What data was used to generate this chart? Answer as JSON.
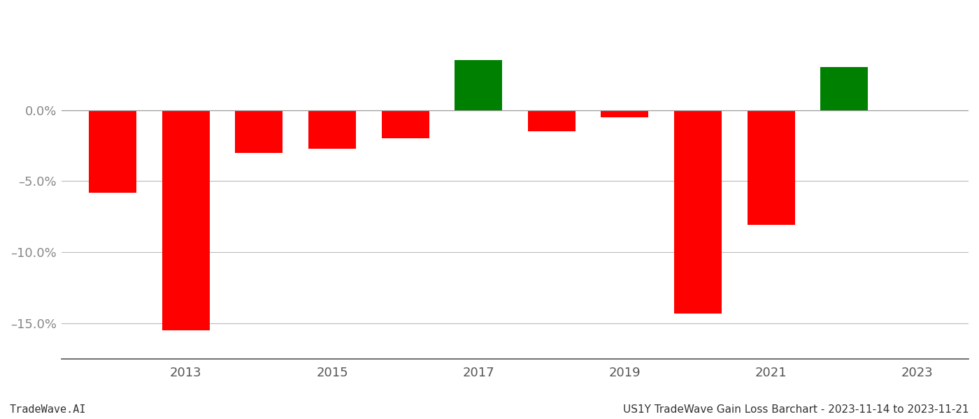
{
  "years": [
    2012,
    2013,
    2014,
    2015,
    2016,
    2017,
    2018,
    2019,
    2020,
    2021,
    2022
  ],
  "values": [
    -0.058,
    -0.155,
    -0.03,
    -0.027,
    -0.02,
    0.035,
    -0.015,
    -0.005,
    -0.143,
    -0.081,
    0.03
  ],
  "positive_color": "#008000",
  "negative_color": "#ff0000",
  "background_color": "#ffffff",
  "grid_color": "#bbbbbb",
  "ylabel_color": "#888888",
  "xlabel_color": "#555555",
  "ylim": [
    -0.175,
    0.07
  ],
  "yticks": [
    -0.15,
    -0.1,
    -0.05,
    0.0
  ],
  "footer_left": "TradeWave.AI",
  "footer_right": "US1Y TradeWave Gain Loss Barchart - 2023-11-14 to 2023-11-21",
  "tick_fontsize": 13,
  "footer_fontsize": 11,
  "bar_width": 0.65
}
